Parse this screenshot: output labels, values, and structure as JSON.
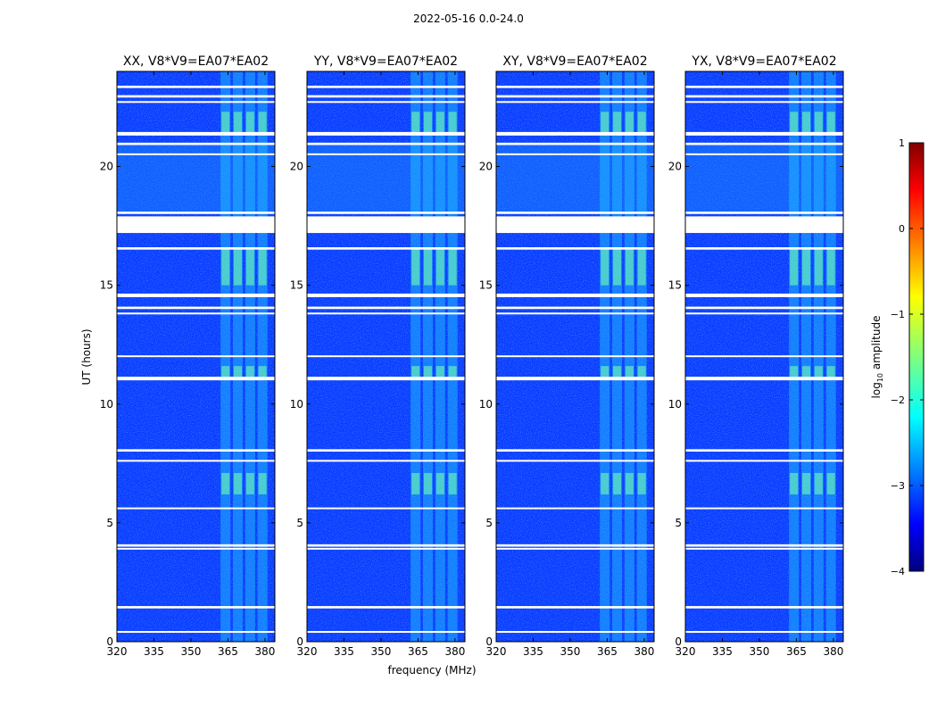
{
  "figure": {
    "suptitle": "2022-05-16 0.0-24.0"
  },
  "chart_data": {
    "type": "heatmap",
    "xlabel": "frequency (MHz)",
    "ylabel": "UT (hours)",
    "xlim": [
      320,
      384
    ],
    "ylim": [
      0,
      24
    ],
    "xticks": [
      "320",
      "335",
      "350",
      "365",
      "380"
    ],
    "yticks": [
      "0",
      "5",
      "10",
      "15",
      "20"
    ],
    "panels": [
      {
        "title": "XX, V8*V9=EA07*EA02",
        "pol": "XX"
      },
      {
        "title": "YY, V8*V9=EA07*EA02",
        "pol": "YY"
      },
      {
        "title": "XY, V8*V9=EA07*EA02",
        "pol": "XY"
      },
      {
        "title": "YX, V8*V9=EA07*EA02",
        "pol": "YX"
      }
    ],
    "colorbar": {
      "label_prefix": "log",
      "label_sub": "10",
      "label_suffix": " amplitude",
      "range": [
        -4,
        1
      ],
      "ticks": [
        "1",
        "0",
        "−1",
        "−2",
        "−3",
        "−4"
      ],
      "colormap": "jet"
    },
    "rfi_bands_mhz": [
      [
        362,
        366
      ],
      [
        367,
        371
      ],
      [
        372,
        376
      ],
      [
        377,
        381
      ]
    ],
    "flagged_hours": [
      [
        23.3,
        23.4
      ],
      [
        22.9,
        23.0
      ],
      [
        22.7,
        22.75
      ],
      [
        21.3,
        21.45
      ],
      [
        20.9,
        21.0
      ],
      [
        20.5,
        20.55
      ],
      [
        18.0,
        18.1
      ],
      [
        17.2,
        17.9
      ],
      [
        16.5,
        16.6
      ],
      [
        14.5,
        14.65
      ],
      [
        14.0,
        14.1
      ],
      [
        13.8,
        13.85
      ],
      [
        12.0,
        12.05
      ],
      [
        11.0,
        11.15
      ],
      [
        8.0,
        8.1
      ],
      [
        7.6,
        7.65
      ],
      [
        5.6,
        5.65
      ],
      [
        4.0,
        4.1
      ],
      [
        3.9,
        3.95
      ],
      [
        1.4,
        1.5
      ],
      [
        0.4,
        0.45
      ]
    ]
  }
}
